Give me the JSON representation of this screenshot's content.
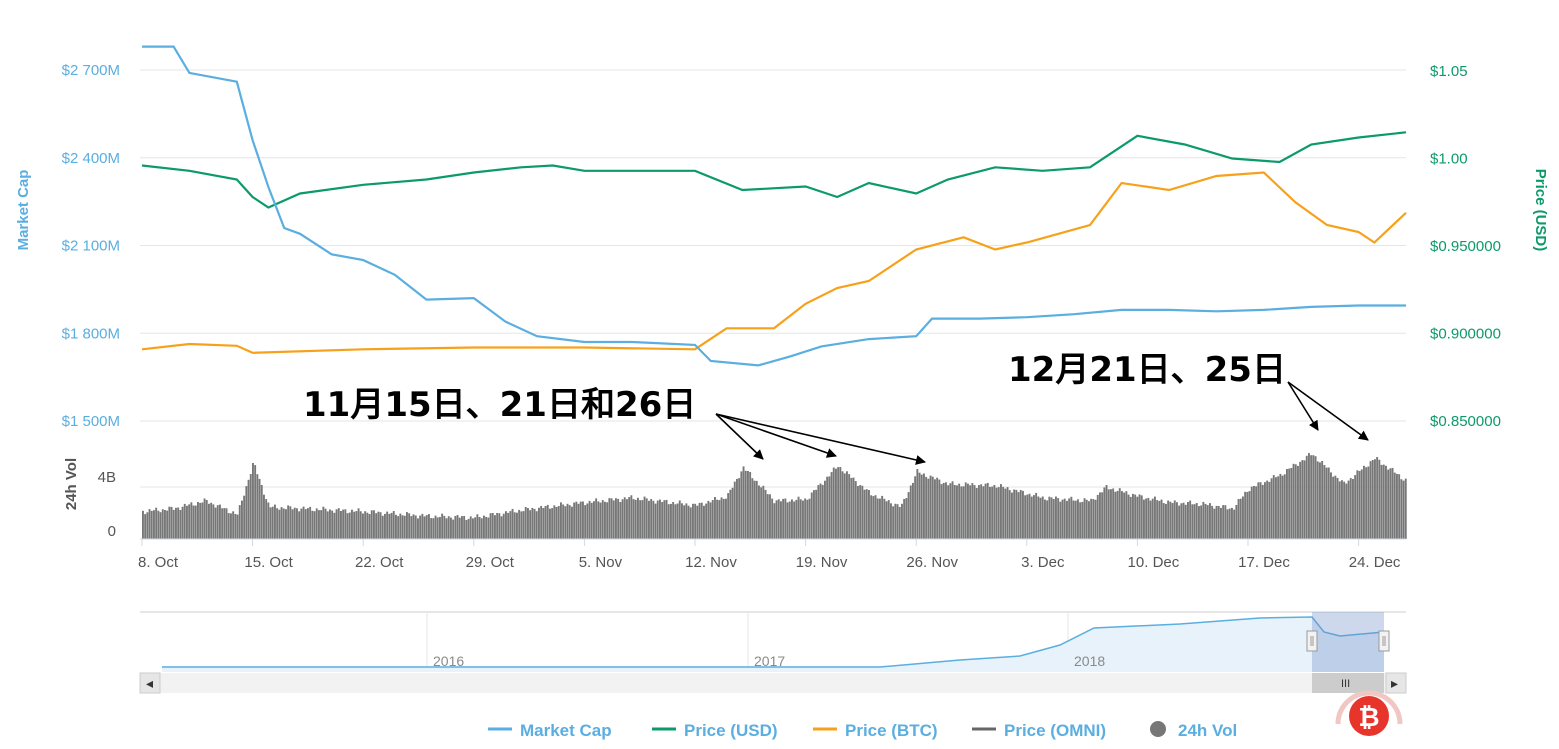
{
  "colors": {
    "market_cap": "#5aaee0",
    "price_usd": "#0c9a6b",
    "price_btc": "#f7a11a",
    "price_omni": "#666666",
    "volume": "#777777",
    "logo_red": "#e8352c"
  },
  "axes": {
    "market_cap_title": "Market Cap",
    "price_usd_title": "Price (USD)",
    "volume_title": "24h Vol",
    "market_cap_ticks": [
      "$2 700M",
      "$2 400M",
      "$2 100M",
      "$1 800M",
      "$1 500M"
    ],
    "price_usd_ticks": [
      "$1.05",
      "$1.00",
      "$0.950000",
      "$0.900000",
      "$0.850000"
    ],
    "volume_ticks": [
      "4B",
      "0"
    ],
    "x_ticks": [
      "8. Oct",
      "15. Oct",
      "22. Oct",
      "29. Oct",
      "5. Nov",
      "12. Nov",
      "19. Nov",
      "26. Nov",
      "3. Dec",
      "10. Dec",
      "17. Dec",
      "24. Dec"
    ]
  },
  "annotations": {
    "november": "11月15日、21日和26日",
    "december": "12月21日、25日"
  },
  "navigator": {
    "years": [
      "2016",
      "2017",
      "2018"
    ],
    "scroll_left": "◂",
    "scroll_right": "▸",
    "scroll_grip": "III"
  },
  "legend": [
    {
      "label": "Market Cap",
      "icon": "line"
    },
    {
      "label": "Price (USD)",
      "icon": "line"
    },
    {
      "label": "Price (BTC)",
      "icon": "line"
    },
    {
      "label": "Price (OMNI)",
      "icon": "line"
    },
    {
      "label": "24h Vol",
      "icon": "circle"
    }
  ],
  "chart_data": {
    "type": "line",
    "x_range": [
      "2018-10-08",
      "2018-12-27"
    ],
    "ylim_market_cap_musd": [
      1500,
      2800
    ],
    "ylim_price_usd": [
      0.85,
      1.07
    ],
    "ylim_volume_b": [
      0,
      7
    ],
    "grid": true,
    "legend_position": "bottom",
    "series": [
      {
        "name": "Market Cap",
        "axis": "left",
        "unit": "M USD",
        "x": [
          "2018-10-08",
          "2018-10-10",
          "2018-10-11",
          "2018-10-14",
          "2018-10-15",
          "2018-10-16",
          "2018-10-17",
          "2018-10-18",
          "2018-10-20",
          "2018-10-22",
          "2018-10-24",
          "2018-10-26",
          "2018-10-29",
          "2018-10-31",
          "2018-11-02",
          "2018-11-05",
          "2018-11-08",
          "2018-11-12",
          "2018-11-13",
          "2018-11-16",
          "2018-11-18",
          "2018-11-20",
          "2018-11-23",
          "2018-11-26",
          "2018-11-27",
          "2018-11-30",
          "2018-12-03",
          "2018-12-06",
          "2018-12-09",
          "2018-12-12",
          "2018-12-15",
          "2018-12-18",
          "2018-12-21",
          "2018-12-24",
          "2018-12-27"
        ],
        "values": [
          2780,
          2780,
          2690,
          2660,
          2460,
          2300,
          2160,
          2140,
          2070,
          2050,
          2000,
          1915,
          1920,
          1840,
          1790,
          1770,
          1770,
          1760,
          1705,
          1690,
          1720,
          1755,
          1780,
          1790,
          1850,
          1850,
          1855,
          1865,
          1880,
          1880,
          1875,
          1880,
          1890,
          1895,
          1895
        ]
      },
      {
        "name": "Price (USD)",
        "axis": "right",
        "unit": "USD",
        "x": [
          "2018-10-08",
          "2018-10-11",
          "2018-10-14",
          "2018-10-15",
          "2018-10-16",
          "2018-10-18",
          "2018-10-22",
          "2018-10-26",
          "2018-10-29",
          "2018-11-01",
          "2018-11-03",
          "2018-11-05",
          "2018-11-08",
          "2018-11-12",
          "2018-11-15",
          "2018-11-19",
          "2018-11-21",
          "2018-11-23",
          "2018-11-26",
          "2018-11-28",
          "2018-12-01",
          "2018-12-04",
          "2018-12-07",
          "2018-12-10",
          "2018-12-13",
          "2018-12-16",
          "2018-12-19",
          "2018-12-21",
          "2018-12-24",
          "2018-12-27"
        ],
        "values": [
          0.996,
          0.993,
          0.988,
          0.978,
          0.972,
          0.98,
          0.985,
          0.988,
          0.992,
          0.995,
          0.996,
          0.993,
          0.993,
          0.993,
          0.982,
          0.984,
          0.978,
          0.986,
          0.98,
          0.988,
          0.995,
          0.993,
          0.995,
          1.013,
          1.008,
          1.0,
          0.998,
          1.008,
          1.012,
          1.015
        ]
      },
      {
        "name": "Price (BTC)",
        "axis": "right",
        "unit": "USD",
        "x": [
          "2018-10-08",
          "2018-10-11",
          "2018-10-14",
          "2018-10-15",
          "2018-10-22",
          "2018-10-29",
          "2018-11-05",
          "2018-11-12",
          "2018-11-14",
          "2018-11-17",
          "2018-11-19",
          "2018-11-21",
          "2018-11-23",
          "2018-11-26",
          "2018-11-29",
          "2018-12-01",
          "2018-12-03",
          "2018-12-07",
          "2018-12-09",
          "2018-12-12",
          "2018-12-15",
          "2018-12-18",
          "2018-12-20",
          "2018-12-22",
          "2018-12-24",
          "2018-12-25",
          "2018-12-27"
        ],
        "values": [
          0.891,
          0.894,
          0.893,
          0.889,
          0.891,
          0.892,
          0.892,
          0.891,
          0.903,
          0.903,
          0.917,
          0.926,
          0.93,
          0.948,
          0.955,
          0.948,
          0.952,
          0.962,
          0.986,
          0.982,
          0.99,
          0.992,
          0.975,
          0.962,
          0.958,
          0.952,
          0.969
        ]
      },
      {
        "name": "24h Vol",
        "axis": "volume",
        "unit": "B USD",
        "x": [
          "2018-10-08",
          "2018-10-10",
          "2018-10-12",
          "2018-10-14",
          "2018-10-15",
          "2018-10-16",
          "2018-10-18",
          "2018-10-22",
          "2018-10-26",
          "2018-10-29",
          "2018-11-01",
          "2018-11-05",
          "2018-11-08",
          "2018-11-12",
          "2018-11-14",
          "2018-11-15",
          "2018-11-17",
          "2018-11-19",
          "2018-11-21",
          "2018-11-23",
          "2018-11-25",
          "2018-11-26",
          "2018-11-28",
          "2018-12-01",
          "2018-12-04",
          "2018-12-07",
          "2018-12-08",
          "2018-12-10",
          "2018-12-12",
          "2018-12-14",
          "2018-12-16",
          "2018-12-17",
          "2018-12-19",
          "2018-12-21",
          "2018-12-23",
          "2018-12-25",
          "2018-12-27"
        ],
        "values": [
          1.8,
          2.0,
          2.5,
          1.6,
          5.0,
          2.1,
          2.0,
          1.8,
          1.5,
          1.4,
          1.9,
          2.4,
          2.7,
          2.2,
          2.8,
          4.7,
          2.5,
          2.6,
          4.8,
          3.0,
          2.1,
          4.4,
          3.6,
          3.5,
          2.7,
          2.5,
          3.4,
          2.8,
          2.4,
          2.3,
          2.0,
          3.3,
          4.2,
          5.6,
          3.6,
          5.3,
          3.8
        ]
      }
    ]
  }
}
